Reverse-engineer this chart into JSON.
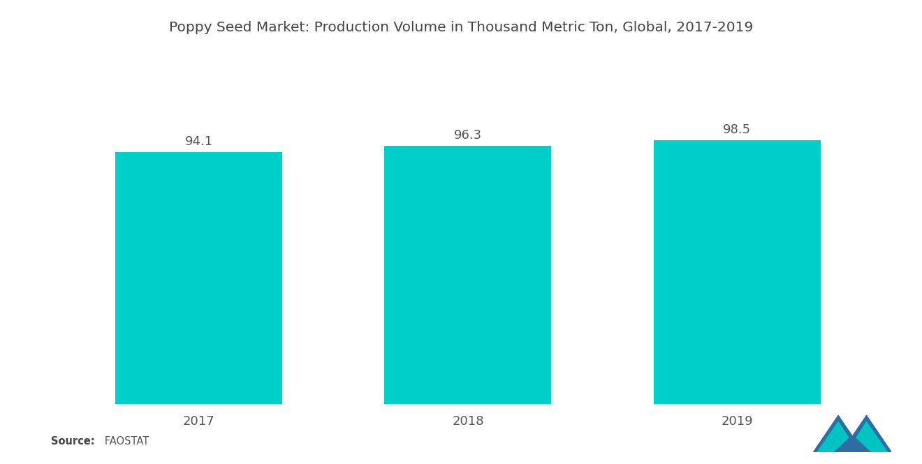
{
  "title": "Poppy Seed Market: Production Volume in Thousand Metric Ton, Global, 2017-2019",
  "categories": [
    "2017",
    "2018",
    "2019"
  ],
  "values": [
    94.1,
    96.3,
    98.5
  ],
  "bar_color": "#00CEC9",
  "background_color": "#FFFFFF",
  "title_fontsize": 14.5,
  "label_fontsize": 13,
  "value_fontsize": 13,
  "source_bold": "Source:",
  "source_normal": "   FAOSTAT",
  "ylim": [
    0,
    130
  ],
  "bar_width": 0.62
}
